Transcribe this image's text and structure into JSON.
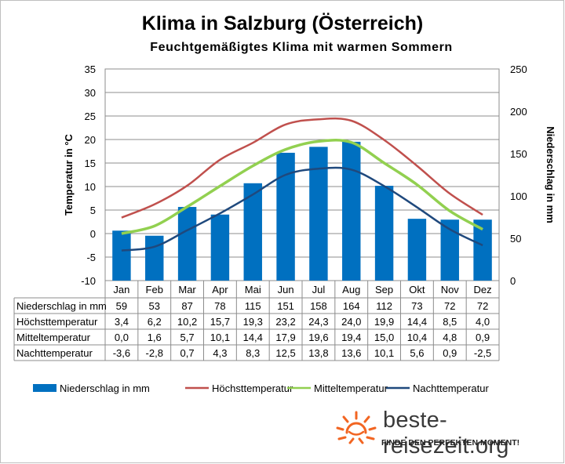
{
  "chart_data": {
    "type": "bar+line",
    "title": "Klima in Salzburg (Österreich)",
    "subtitle": "Feuchtgemäßigtes  Klima mit warmen Sommern",
    "ylabel_left": "Temperatur in °C",
    "ylabel_right": "Niederschlag in mm",
    "ylim_left": [
      -10,
      35
    ],
    "ylim_right": [
      0,
      250
    ],
    "yticks_left": [
      "35",
      "30",
      "25",
      "20",
      "15",
      "10",
      "5",
      "0",
      "-5",
      "-10"
    ],
    "yticks_right": [
      "250",
      "200",
      "150",
      "100",
      "50",
      "0"
    ],
    "categories": [
      "Jan",
      "Feb",
      "Mar",
      "Apr",
      "Mai",
      "Jun",
      "Jul",
      "Aug",
      "Sep",
      "Okt",
      "Nov",
      "Dez"
    ],
    "bars": {
      "name": "Niederschlag in mm",
      "color": "#0070c0",
      "axis": "right",
      "values": [
        59,
        53,
        87,
        78,
        115,
        151,
        158,
        164,
        112,
        73,
        72,
        72
      ]
    },
    "series": [
      {
        "name": "Höchsttemperatur",
        "color": "#c0504d",
        "values": [
          3.4,
          6.2,
          10.2,
          15.7,
          19.3,
          23.2,
          24.3,
          24.0,
          19.9,
          14.4,
          8.5,
          4.0
        ]
      },
      {
        "name": "Mitteltemperatur",
        "color": "#92d050",
        "values": [
          0.0,
          1.6,
          5.7,
          10.1,
          14.4,
          17.9,
          19.6,
          19.4,
          15.0,
          10.4,
          4.8,
          0.9
        ]
      },
      {
        "name": "Nachttemperatur",
        "color": "#1f497d",
        "values": [
          -3.6,
          -2.8,
          0.7,
          4.3,
          8.3,
          12.5,
          13.8,
          13.6,
          10.1,
          5.6,
          0.9,
          -2.5
        ]
      }
    ],
    "table": {
      "rows": [
        {
          "label": "Niederschlag in mm",
          "cells": [
            "59",
            "53",
            "87",
            "78",
            "115",
            "151",
            "158",
            "164",
            "112",
            "73",
            "72",
            "72"
          ]
        },
        {
          "label": "Höchsttemperatur",
          "cells": [
            "3,4",
            "6,2",
            "10,2",
            "15,7",
            "19,3",
            "23,2",
            "24,3",
            "24,0",
            "19,9",
            "14,4",
            "8,5",
            "4,0"
          ]
        },
        {
          "label": "Mitteltemperatur",
          "cells": [
            "0,0",
            "1,6",
            "5,7",
            "10,1",
            "14,4",
            "17,9",
            "19,6",
            "19,4",
            "15,0",
            "10,4",
            "4,8",
            "0,9"
          ]
        },
        {
          "label": "Nachttemperatur",
          "cells": [
            "-3,6",
            "-2,8",
            "0,7",
            "4,3",
            "8,3",
            "12,5",
            "13,8",
            "13,6",
            "10,1",
            "5,6",
            "0,9",
            "-2,5"
          ]
        }
      ]
    },
    "legend": [
      {
        "name": "Niederschlag in mm",
        "kind": "bar",
        "color": "#0070c0"
      },
      {
        "name": "Höchsttemperatur",
        "kind": "line",
        "color": "#c0504d"
      },
      {
        "name": "Mitteltemperatur",
        "kind": "line",
        "color": "#92d050"
      },
      {
        "name": "Nachttemperatur",
        "kind": "line",
        "color": "#1f497d"
      }
    ],
    "legend_position": "bottom",
    "grid": true
  },
  "branding": {
    "logo_text": "beste-reisezeit.org",
    "tagline": "FINDE DEN PERFEKTEN MOMENT!",
    "sun_color": "#f26522"
  }
}
